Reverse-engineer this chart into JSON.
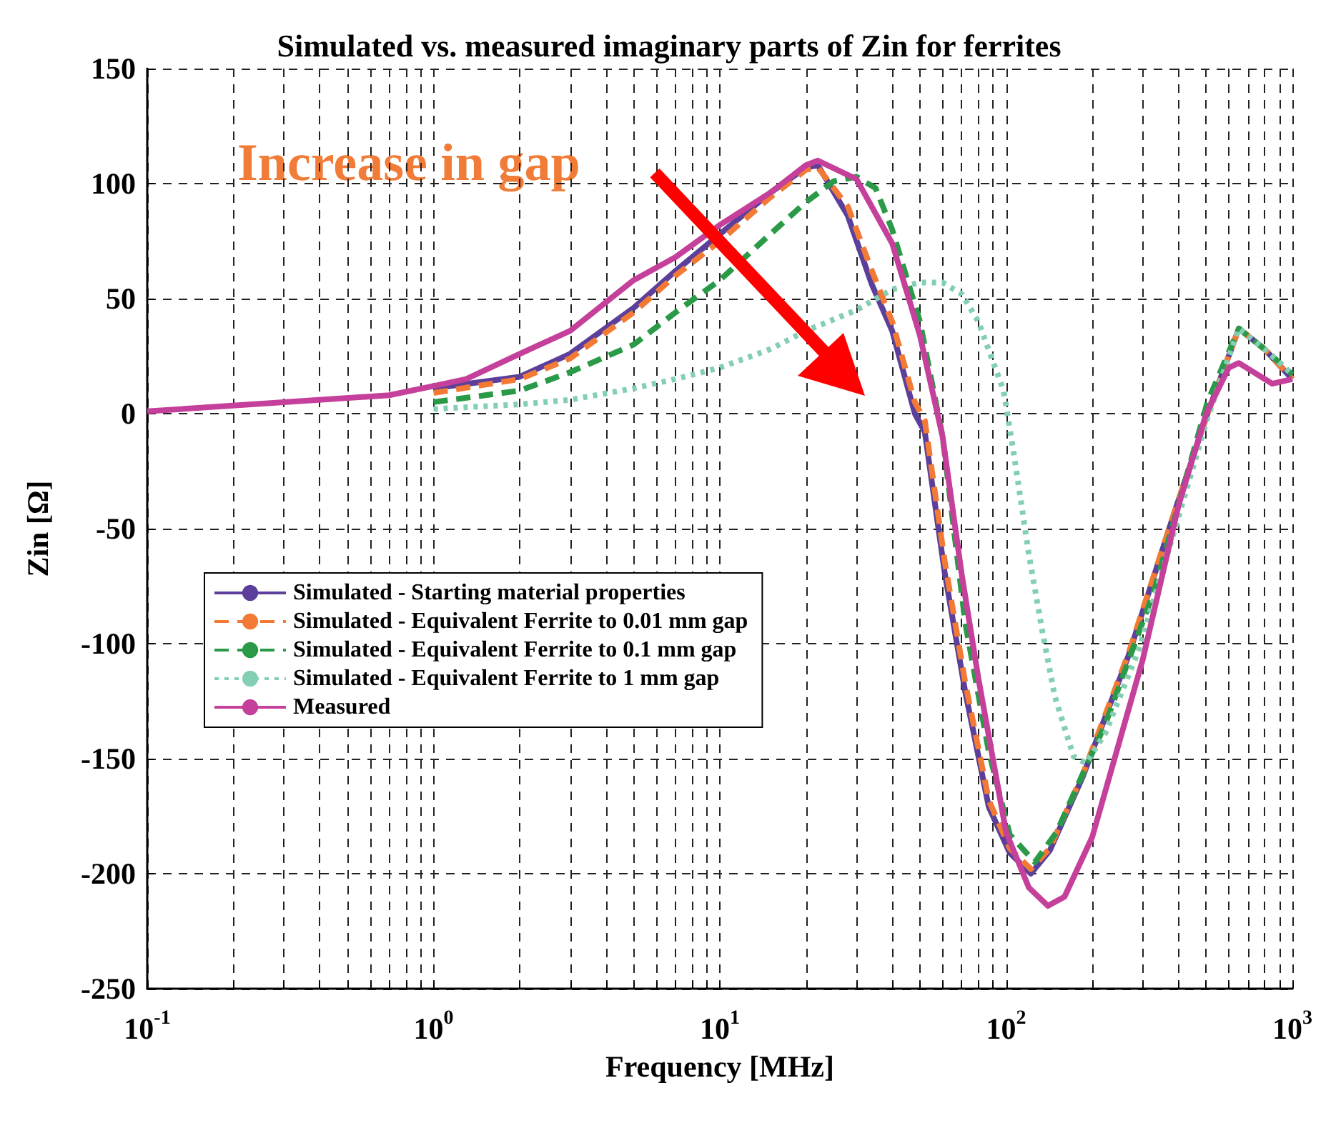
{
  "chart_data": {
    "type": "line",
    "title": "Simulated vs. measured imaginary parts of Zin for ferrites",
    "xlabel": "Frequency [MHz]",
    "ylabel": "Zin [Ω]",
    "log": "x",
    "grid": true,
    "legend": "left",
    "marker": "none",
    "xlim": [
      0.1,
      1000
    ],
    "ylim": [
      -250,
      150
    ],
    "xticks": [
      {
        "value": 0.1,
        "label": "10$^{-1}$"
      },
      {
        "value": 0.2,
        "label": null
      },
      {
        "value": 0.3,
        "label": null
      },
      {
        "value": 0.4,
        "label": null
      },
      {
        "value": 0.5,
        "label": null
      },
      {
        "value": 0.6,
        "label": null
      },
      {
        "value": 0.7,
        "label": null
      },
      {
        "value": 0.8,
        "label": null
      },
      {
        "value": 0.9,
        "label": null
      },
      {
        "value": 1,
        "label": "10$^{0}$"
      },
      {
        "value": 2,
        "label": null
      },
      {
        "value": 3,
        "label": null
      },
      {
        "value": 4,
        "label": null
      },
      {
        "value": 5,
        "label": null
      },
      {
        "value": 6,
        "label": null
      },
      {
        "value": 7,
        "label": null
      },
      {
        "value": 8,
        "label": null
      },
      {
        "value": 9,
        "label": null
      },
      {
        "value": 10,
        "label": "10$^{1}$"
      },
      {
        "value": 20,
        "label": null
      },
      {
        "value": 30,
        "label": null
      },
      {
        "value": 40,
        "label": null
      },
      {
        "value": 50,
        "label": null
      },
      {
        "value": 60,
        "label": null
      },
      {
        "value": 70,
        "label": null
      },
      {
        "value": 80,
        "label": null
      },
      {
        "value": 90,
        "label": null
      },
      {
        "value": 100,
        "label": "10$^{2}$"
      },
      {
        "value": 200,
        "label": null
      },
      {
        "value": 300,
        "label": null
      },
      {
        "value": 400,
        "label": null
      },
      {
        "value": 500,
        "label": null
      },
      {
        "value": 600,
        "label": null
      },
      {
        "value": 700,
        "label": null
      },
      {
        "value": 800,
        "label": null
      },
      {
        "value": 900,
        "label": null
      },
      {
        "value": 1000,
        "label": "10$^{3}$"
      }
    ],
    "yticks": [
      -250,
      -200,
      -150,
      -100,
      -50,
      0,
      50,
      100,
      150
    ],
    "annotations": [
      "Increase in gap"
    ],
    "series": [
      {
        "name": "Simulated - Starting material properties",
        "color": "#5b3f9a",
        "line_style": "solid",
        "x": [
          1,
          2,
          3,
          5,
          7,
          10,
          15,
          20,
          22,
          28,
          34,
          40,
          48,
          52,
          61,
          72,
          87,
          103,
          122,
          142,
          185,
          268,
          387,
          505,
          650,
          800,
          1000
        ],
        "values": [
          11,
          16,
          26,
          46,
          62,
          78,
          96,
          107,
          108,
          86,
          56,
          36,
          0,
          -8,
          -69,
          -121,
          -171,
          -191,
          -200,
          -190,
          -158,
          -105,
          -43,
          0,
          37,
          28,
          15
        ]
      },
      {
        "name": "Simulated - Equivalent Ferrite to 0.01 mm gap",
        "color": "#f27a35",
        "line_style": "dashed",
        "x": [
          1,
          2,
          3,
          5,
          7,
          10,
          15,
          20,
          22,
          28,
          34,
          40,
          48,
          52,
          61,
          72,
          87,
          103,
          122,
          142,
          185,
          268,
          387,
          505,
          650,
          800,
          1000
        ],
        "values": [
          9,
          15,
          24,
          44,
          60,
          75,
          94,
          106,
          107,
          90,
          62,
          40,
          5,
          -3,
          -64,
          -117,
          -168,
          -189,
          -198,
          -189,
          -157,
          -104,
          -43,
          0,
          37,
          28,
          15
        ]
      },
      {
        "name": "Simulated - Equivalent Ferrite to 0.1 mm gap",
        "color": "#2a9a48",
        "line_style": "dashed",
        "x": [
          1,
          2,
          3,
          5,
          7,
          10,
          15,
          20,
          25,
          30,
          35,
          40,
          50,
          60,
          72,
          87,
          103,
          126,
          150,
          222,
          329,
          505,
          650,
          800,
          1000
        ],
        "values": [
          5,
          10,
          18,
          30,
          44,
          58,
          78,
          92,
          101,
          103,
          98,
          80,
          40,
          -10,
          -91,
          -147,
          -183,
          -195,
          -182,
          -135,
          -77,
          5,
          37,
          28,
          17
        ]
      },
      {
        "name": "Simulated - Equivalent Ferrite to 1 mm gap",
        "color": "#84cfb4",
        "line_style": "dotted",
        "x": [
          1,
          2,
          3,
          5,
          7,
          10,
          15,
          20,
          30,
          40,
          50,
          60,
          70,
          80,
          98,
          106,
          120,
          134,
          148,
          172,
          190,
          222,
          290,
          387,
          505,
          650,
          800,
          1000
        ],
        "values": [
          2,
          4,
          6,
          11,
          15,
          20,
          28,
          36,
          45,
          54,
          57,
          57,
          52,
          40,
          10,
          -16,
          -61,
          -95,
          -123,
          -149,
          -152,
          -139,
          -103,
          -51,
          -2,
          37,
          28,
          17
        ]
      },
      {
        "name": "Measured",
        "color": "#c5409a",
        "line_style": "solid",
        "x": [
          0.1,
          0.7,
          1,
          1.3,
          2,
          3,
          5,
          7,
          10,
          15,
          20,
          22,
          30,
          40,
          50,
          60,
          70,
          80,
          100,
          120,
          140,
          160,
          200,
          300,
          400,
          500,
          600,
          650,
          850,
          1000
        ],
        "values": [
          1,
          8,
          12,
          15,
          26,
          36,
          58,
          68,
          82,
          96,
          108,
          110,
          102,
          74,
          34,
          -10,
          -70,
          -115,
          -182,
          -206,
          -214,
          -210,
          -184,
          -107,
          -40,
          0,
          20,
          22,
          13,
          15
        ]
      }
    ]
  }
}
